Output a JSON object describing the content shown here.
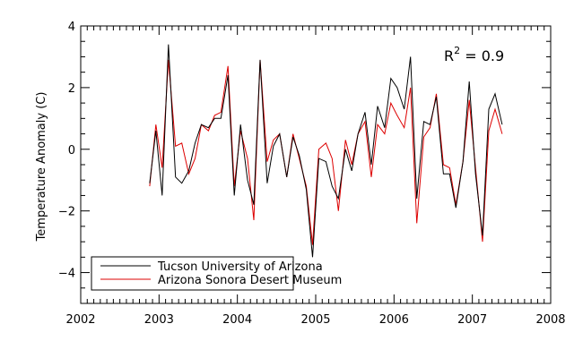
{
  "chart_data": {
    "type": "line",
    "title": "",
    "xlabel": "",
    "ylabel": "Temperature Anomaly (C)",
    "xlim": [
      2002,
      2008
    ],
    "ylim": [
      -5,
      4
    ],
    "xticks": [
      2002,
      2003,
      2004,
      2005,
      2006,
      2007,
      2008
    ],
    "yticks": [
      -4,
      -2,
      0,
      2,
      4
    ],
    "grid": false,
    "legend_position": "bottom-left",
    "annotation": {
      "base": "R",
      "sup": "2",
      "rest": " = 0.9"
    },
    "series": [
      {
        "name": "Tucson University of Arizona",
        "color": "#000000",
        "x": [
          2002.88,
          2002.96,
          2003.04,
          2003.12,
          2003.21,
          2003.29,
          2003.38,
          2003.46,
          2003.54,
          2003.63,
          2003.71,
          2003.79,
          2003.88,
          2003.96,
          2004.04,
          2004.13,
          2004.21,
          2004.29,
          2004.38,
          2004.46,
          2004.54,
          2004.63,
          2004.71,
          2004.79,
          2004.88,
          2004.96,
          2005.04,
          2005.13,
          2005.21,
          2005.29,
          2005.38,
          2005.46,
          2005.54,
          2005.63,
          2005.71,
          2005.79,
          2005.88,
          2005.96,
          2006.04,
          2006.13,
          2006.21,
          2006.29,
          2006.38,
          2006.46,
          2006.54,
          2006.63,
          2006.71,
          2006.79,
          2006.88,
          2006.96,
          2007.04,
          2007.13,
          2007.21,
          2007.29,
          2007.38
        ],
        "y": [
          -1.1,
          0.6,
          -1.5,
          3.4,
          -0.9,
          -1.1,
          -0.7,
          0.2,
          0.8,
          0.7,
          1.0,
          1.0,
          2.4,
          -1.5,
          0.8,
          -1.0,
          -1.8,
          2.9,
          -1.1,
          0.1,
          0.5,
          -0.9,
          0.4,
          -0.2,
          -1.3,
          -3.5,
          -0.3,
          -0.4,
          -1.2,
          -1.6,
          0.0,
          -0.7,
          0.5,
          1.2,
          -0.5,
          1.4,
          0.7,
          2.3,
          2.0,
          1.3,
          3.0,
          -1.6,
          0.9,
          0.8,
          1.7,
          -0.8,
          -0.8,
          -1.9,
          -0.4,
          2.2,
          -0.8,
          -2.8,
          1.3,
          1.8,
          0.8
        ]
      },
      {
        "name": "Arizona Sonora Desert Museum",
        "color": "#dd0000",
        "x": [
          2002.88,
          2002.96,
          2003.04,
          2003.12,
          2003.21,
          2003.29,
          2003.38,
          2003.46,
          2003.54,
          2003.63,
          2003.71,
          2003.79,
          2003.88,
          2003.96,
          2004.04,
          2004.13,
          2004.21,
          2004.29,
          2004.38,
          2004.46,
          2004.54,
          2004.63,
          2004.71,
          2004.79,
          2004.88,
          2004.96,
          2005.04,
          2005.13,
          2005.21,
          2005.29,
          2005.38,
          2005.46,
          2005.54,
          2005.63,
          2005.71,
          2005.79,
          2005.88,
          2005.96,
          2006.04,
          2006.13,
          2006.21,
          2006.29,
          2006.38,
          2006.46,
          2006.54,
          2006.63,
          2006.71,
          2006.79,
          2006.88,
          2006.96,
          2007.04,
          2007.13,
          2007.21,
          2007.29,
          2007.38
        ],
        "y": [
          -1.2,
          0.8,
          -0.6,
          2.9,
          0.1,
          0.2,
          -0.8,
          -0.3,
          0.8,
          0.6,
          1.1,
          1.2,
          2.7,
          -1.2,
          0.6,
          -0.3,
          -2.3,
          2.9,
          -0.4,
          0.3,
          0.5,
          -0.9,
          0.5,
          -0.3,
          -1.2,
          -3.1,
          0.0,
          0.2,
          -0.3,
          -2.0,
          0.3,
          -0.5,
          0.5,
          0.9,
          -0.9,
          0.8,
          0.5,
          1.5,
          1.1,
          0.7,
          2.0,
          -2.4,
          0.4,
          0.7,
          1.8,
          -0.5,
          -0.6,
          -1.8,
          -0.4,
          1.6,
          -0.6,
          -3.0,
          0.6,
          1.3,
          0.5
        ]
      }
    ]
  }
}
